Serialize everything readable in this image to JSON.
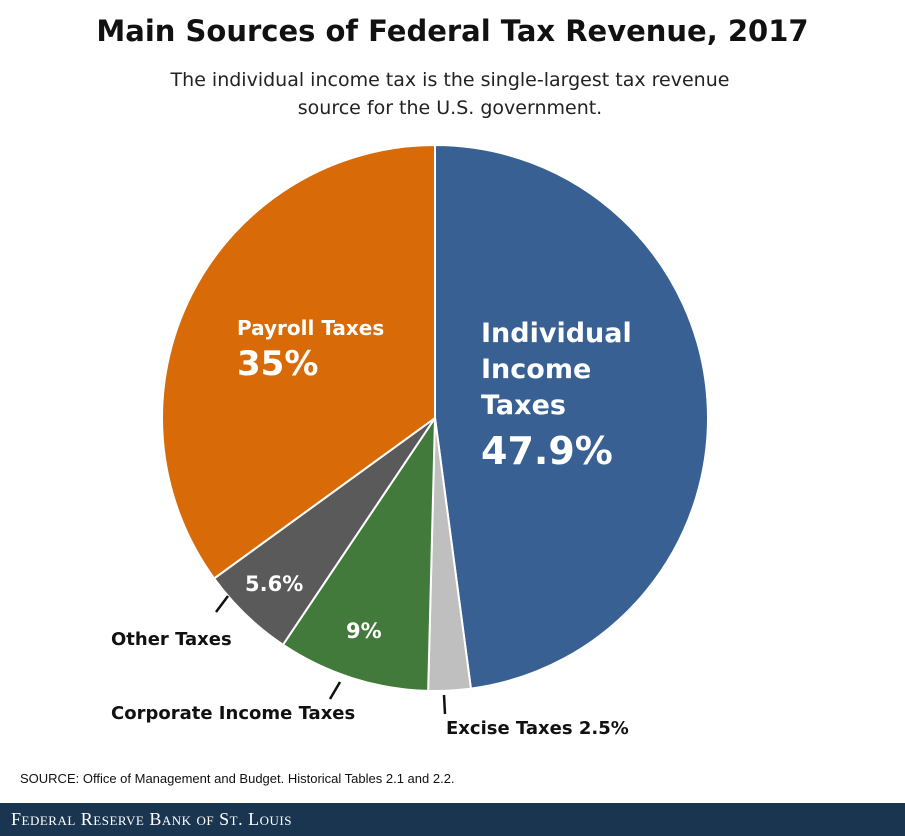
{
  "chart_data": {
    "type": "pie",
    "title": "Main Sources of Federal Tax Revenue, 2017",
    "subtitle": "The individual income tax is the single-largest tax revenue source for the U.S. government.",
    "start": "top",
    "direction": "clockwise",
    "slices": [
      {
        "label": "Individual Income Taxes",
        "value": 47.9,
        "display": "47.9%",
        "color": "#386093"
      },
      {
        "label": "Excise Taxes",
        "value": 2.5,
        "display": "2.5%",
        "color": "#bfbfbf"
      },
      {
        "label": "Corporate Income Taxes",
        "value": 9,
        "display": "9%",
        "color": "#427a3b"
      },
      {
        "label": "Other Taxes",
        "value": 5.6,
        "display": "5.6%",
        "color": "#5a5a5a"
      },
      {
        "label": "Payroll Taxes",
        "value": 35,
        "display": "35%",
        "color": "#d96a08"
      }
    ]
  },
  "source": "SOURCE: Office of Management and Budget. Historical Tables 2.1 and 2.2.",
  "footer": {
    "brand": "Federal Reserve Bank of St. Louis",
    "color": "#1a3550"
  }
}
